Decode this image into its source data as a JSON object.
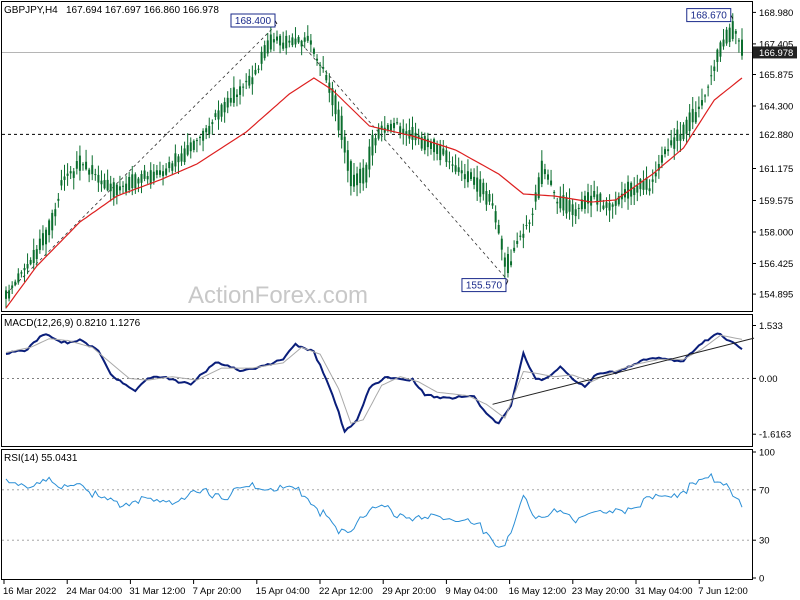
{
  "header": {
    "symbol": "GBPJPY,H4",
    "ohlc": "167.694 167.697 166.860 166.978"
  },
  "watermark": "ActionForex.com",
  "colors": {
    "candle": "#0b6e2e",
    "ma": "#dd1f1f",
    "macd": "#0a1e7a",
    "signal": "#a9a9a9",
    "rsi": "#2b8fd6",
    "trend": "#222222",
    "box_border": "#1a2a8a",
    "current_price_bg": "#222222"
  },
  "chart_data": [
    {
      "type": "candlestick",
      "panel": "price",
      "ylim": [
        154.2,
        169.4
      ],
      "y_ticks": [
        "168.980",
        "167.405",
        "165.875",
        "164.300",
        "162.880",
        "161.175",
        "159.575",
        "158.000",
        "156.425",
        "154.895"
      ],
      "x_labels": [
        "16 Mar 2022",
        "24 Mar 04:00",
        "31 Mar 12:00",
        "7 Apr 20:00",
        "15 Apr 04:00",
        "22 Apr 12:00",
        "29 Apr 20:00",
        "9 May 04:00",
        "16 May 12:00",
        "23 May 20:00",
        "31 May 04:00",
        "7 Jun 12:00"
      ],
      "close_anchors": [
        [
          0,
          155.0
        ],
        [
          8,
          156.6
        ],
        [
          14,
          158.2
        ],
        [
          18,
          160.6
        ],
        [
          24,
          161.4
        ],
        [
          30,
          160.7
        ],
        [
          36,
          160.0
        ],
        [
          42,
          160.6
        ],
        [
          50,
          160.9
        ],
        [
          58,
          161.9
        ],
        [
          66,
          163.3
        ],
        [
          74,
          164.9
        ],
        [
          80,
          165.8
        ],
        [
          86,
          167.6
        ],
        [
          92,
          167.5
        ],
        [
          98,
          167.6
        ],
        [
          104,
          165.5
        ],
        [
          108,
          163.5
        ],
        [
          112,
          160.5
        ],
        [
          116,
          160.8
        ],
        [
          120,
          163.0
        ],
        [
          126,
          163.3
        ],
        [
          134,
          162.7
        ],
        [
          140,
          162.2
        ],
        [
          146,
          161.1
        ],
        [
          152,
          160.6
        ],
        [
          158,
          159.2
        ],
        [
          162,
          156.2
        ],
        [
          166,
          157.6
        ],
        [
          170,
          158.6
        ],
        [
          174,
          161.2
        ],
        [
          178,
          159.8
        ],
        [
          184,
          159.0
        ],
        [
          190,
          159.8
        ],
        [
          196,
          159.2
        ],
        [
          202,
          160.1
        ],
        [
          208,
          160.3
        ],
        [
          214,
          162.1
        ],
        [
          220,
          163.0
        ],
        [
          226,
          164.6
        ],
        [
          232,
          167.3
        ],
        [
          236,
          168.2
        ],
        [
          239,
          167.0
        ]
      ],
      "moving_average_anchors": [
        [
          0,
          154.2
        ],
        [
          10,
          156.3
        ],
        [
          24,
          158.5
        ],
        [
          36,
          159.8
        ],
        [
          50,
          160.6
        ],
        [
          62,
          161.4
        ],
        [
          78,
          163.0
        ],
        [
          92,
          164.9
        ],
        [
          100,
          165.7
        ],
        [
          106,
          165.1
        ],
        [
          118,
          163.3
        ],
        [
          132,
          162.8
        ],
        [
          146,
          162.1
        ],
        [
          160,
          160.9
        ],
        [
          168,
          159.9
        ],
        [
          178,
          159.8
        ],
        [
          190,
          159.5
        ],
        [
          198,
          159.6
        ],
        [
          210,
          160.9
        ],
        [
          220,
          162.2
        ],
        [
          230,
          164.6
        ],
        [
          239,
          165.7
        ]
      ],
      "horizontal_levels": [
        {
          "value": 162.88,
          "label": "162.880",
          "style": "dashed"
        },
        {
          "value": 166.978,
          "label": "166.978",
          "style": "current"
        }
      ],
      "annotations": [
        {
          "text": "168.400",
          "value": 168.4,
          "bar": 88
        },
        {
          "text": "155.570",
          "value": 155.57,
          "bar": 163
        },
        {
          "text": "168.670",
          "value": 168.67,
          "bar": 236
        }
      ],
      "dashed_lines": [
        [
          [
            0,
            154.9
          ],
          [
            88,
            168.4
          ]
        ],
        [
          [
            96,
            167.4
          ],
          [
            163,
            155.57
          ]
        ]
      ]
    },
    {
      "type": "line",
      "panel": "macd",
      "title": "MACD(12,26,9) 0.8210 1.1276",
      "ylim": [
        -1.9,
        1.75
      ],
      "y_ticks": [
        "1.533",
        "0.00",
        "-1.6163"
      ],
      "series": [
        {
          "key": "macd",
          "anchors": [
            [
              0,
              0.7
            ],
            [
              6,
              0.8
            ],
            [
              12,
              1.3
            ],
            [
              18,
              1.0
            ],
            [
              24,
              1.15
            ],
            [
              30,
              0.8
            ],
            [
              34,
              0.1
            ],
            [
              38,
              -0.1
            ],
            [
              42,
              -0.35
            ],
            [
              46,
              0.0
            ],
            [
              52,
              0.05
            ],
            [
              60,
              -0.2
            ],
            [
              68,
              0.5
            ],
            [
              76,
              0.2
            ],
            [
              84,
              0.4
            ],
            [
              90,
              0.5
            ],
            [
              94,
              1.0
            ],
            [
              100,
              0.8
            ],
            [
              106,
              -0.5
            ],
            [
              110,
              -1.5
            ],
            [
              114,
              -1.2
            ],
            [
              118,
              -0.3
            ],
            [
              124,
              0.05
            ],
            [
              132,
              -0.05
            ],
            [
              136,
              -0.5
            ],
            [
              144,
              -0.55
            ],
            [
              152,
              -0.55
            ],
            [
              156,
              -1.0
            ],
            [
              160,
              -1.3
            ],
            [
              164,
              -0.8
            ],
            [
              168,
              0.7
            ],
            [
              172,
              0.0
            ],
            [
              176,
              0.0
            ],
            [
              180,
              0.3
            ],
            [
              184,
              0.0
            ],
            [
              188,
              -0.2
            ],
            [
              192,
              0.1
            ],
            [
              198,
              0.2
            ],
            [
              206,
              0.5
            ],
            [
              214,
              0.6
            ],
            [
              220,
              0.5
            ],
            [
              226,
              1.0
            ],
            [
              231,
              1.35
            ],
            [
              235,
              1.1
            ],
            [
              239,
              0.82
            ]
          ]
        },
        {
          "key": "signal",
          "anchors": [
            [
              0,
              0.75
            ],
            [
              8,
              0.9
            ],
            [
              14,
              1.15
            ],
            [
              20,
              1.1
            ],
            [
              28,
              0.9
            ],
            [
              34,
              0.45
            ],
            [
              40,
              0.0
            ],
            [
              46,
              -0.05
            ],
            [
              54,
              0.05
            ],
            [
              62,
              -0.05
            ],
            [
              70,
              0.3
            ],
            [
              80,
              0.3
            ],
            [
              90,
              0.45
            ],
            [
              96,
              0.9
            ],
            [
              102,
              0.7
            ],
            [
              108,
              -0.3
            ],
            [
              112,
              -1.3
            ],
            [
              116,
              -1.2
            ],
            [
              122,
              -0.2
            ],
            [
              128,
              0.05
            ],
            [
              134,
              -0.1
            ],
            [
              140,
              -0.4
            ],
            [
              150,
              -0.5
            ],
            [
              156,
              -0.75
            ],
            [
              162,
              -1.15
            ],
            [
              168,
              0.2
            ],
            [
              172,
              0.15
            ],
            [
              178,
              0.05
            ],
            [
              184,
              0.1
            ],
            [
              190,
              -0.1
            ],
            [
              196,
              0.15
            ],
            [
              204,
              0.4
            ],
            [
              212,
              0.55
            ],
            [
              220,
              0.55
            ],
            [
              226,
              0.85
            ],
            [
              232,
              1.25
            ],
            [
              239,
              1.13
            ]
          ]
        }
      ],
      "trendline": [
        [
          158,
          -0.75
        ],
        [
          239,
          1.05
        ]
      ]
    },
    {
      "type": "line",
      "panel": "rsi",
      "title": "RSI(14) 55.0431",
      "ylim": [
        0,
        100
      ],
      "y_ticks": [
        "100",
        "70",
        "30",
        "0"
      ],
      "guide_levels": [
        70,
        30
      ],
      "series": [
        {
          "key": "rsi",
          "anchors": [
            [
              0,
              75
            ],
            [
              6,
              72
            ],
            [
              12,
              79
            ],
            [
              18,
              70
            ],
            [
              24,
              77
            ],
            [
              30,
              63
            ],
            [
              36,
              58
            ],
            [
              42,
              62
            ],
            [
              48,
              59
            ],
            [
              56,
              63
            ],
            [
              64,
              68
            ],
            [
              72,
              66
            ],
            [
              80,
              73
            ],
            [
              88,
              71
            ],
            [
              96,
              69
            ],
            [
              102,
              53
            ],
            [
              108,
              35
            ],
            [
              112,
              38
            ],
            [
              116,
              52
            ],
            [
              122,
              55
            ],
            [
              128,
              51
            ],
            [
              136,
              46
            ],
            [
              142,
              50
            ],
            [
              150,
              44
            ],
            [
              156,
              38
            ],
            [
              160,
              25
            ],
            [
              164,
              34
            ],
            [
              168,
              62
            ],
            [
              172,
              51
            ],
            [
              178,
              53
            ],
            [
              184,
              46
            ],
            [
              190,
              55
            ],
            [
              196,
              50
            ],
            [
              204,
              58
            ],
            [
              212,
              64
            ],
            [
              220,
              69
            ],
            [
              226,
              76
            ],
            [
              230,
              80
            ],
            [
              234,
              75
            ],
            [
              239,
              55
            ]
          ]
        }
      ]
    }
  ]
}
